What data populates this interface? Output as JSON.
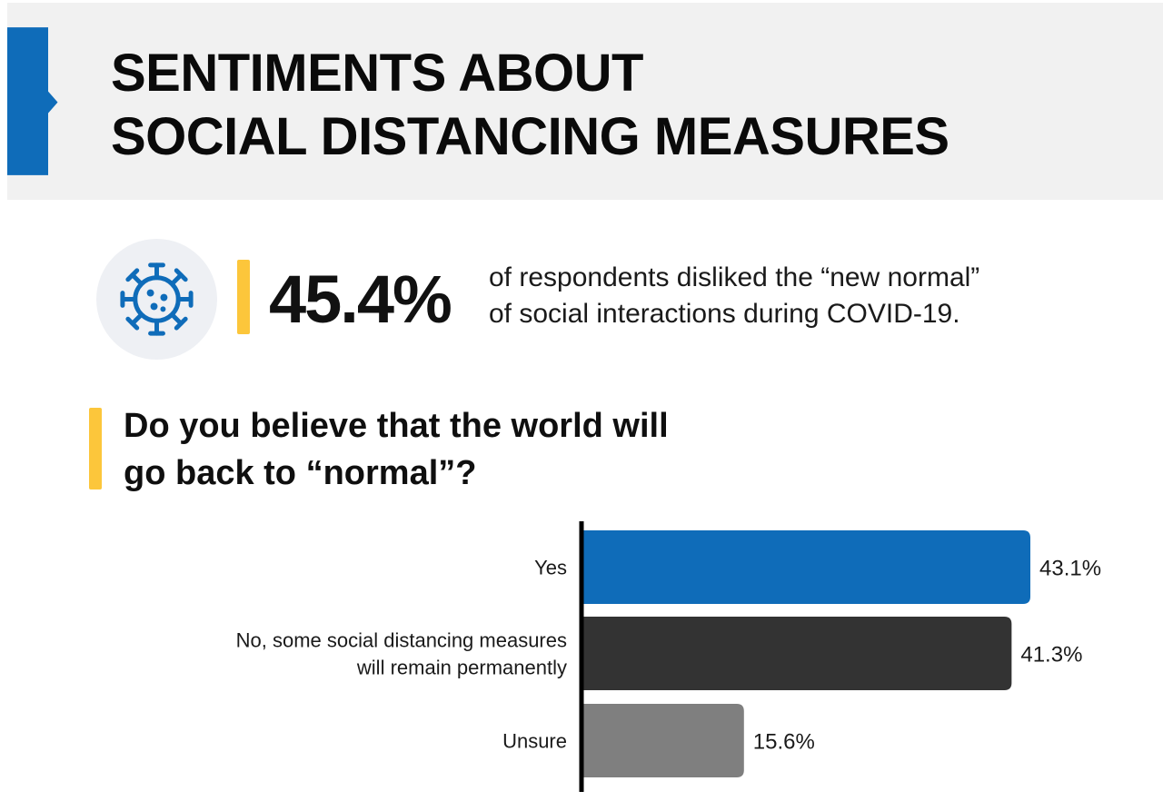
{
  "header": {
    "title_line1": "SENTIMENTS ABOUT",
    "title_line2": "SOCIAL DISTANCING MEASURES",
    "accent_color": "#0f6cb9"
  },
  "stat": {
    "icon": "virus-icon",
    "value": "45.4%",
    "desc_line1": "of respondents disliked the “new normal”",
    "desc_line2": "of social interactions during COVID-19."
  },
  "question": {
    "line1": "Do you believe that the world will",
    "line2": "go back to “normal”?"
  },
  "highlight_color": "#fcc63b",
  "chart_data": {
    "type": "bar",
    "orientation": "horizontal",
    "title": "Do you believe that the world will go back to “normal”?",
    "categories": [
      [
        "Yes"
      ],
      [
        "No, some social distancing measures",
        "will remain permanently"
      ],
      [
        "Unsure"
      ]
    ],
    "values": [
      43.1,
      41.3,
      15.6
    ],
    "value_labels": [
      "43.1%",
      "41.3%",
      "15.6%"
    ],
    "colors": [
      "#0f6cb9",
      "#333333",
      "#7f7f7f"
    ],
    "xlim": [
      0,
      43.1
    ],
    "grid": false
  }
}
